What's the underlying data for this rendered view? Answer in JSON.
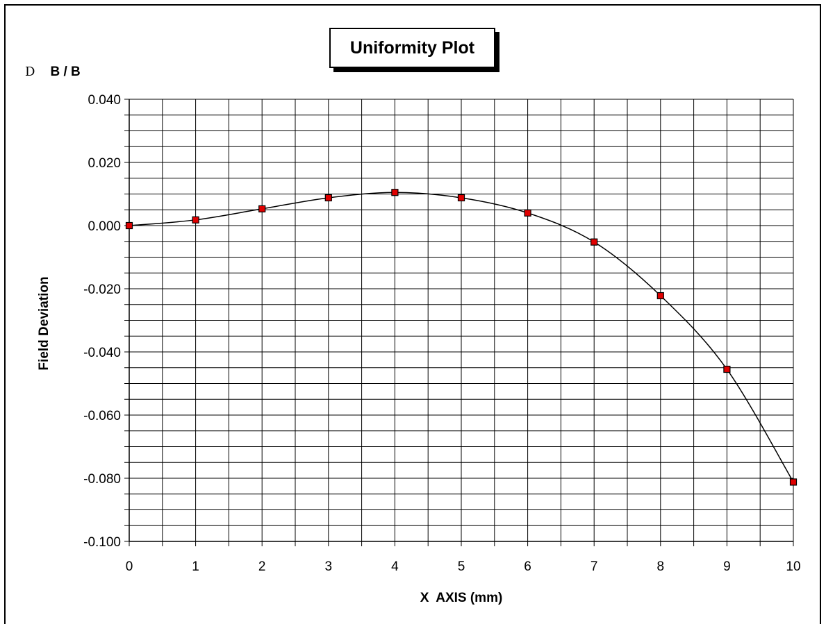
{
  "chart_data": {
    "type": "line",
    "title": "Uniformity Plot",
    "ylabel_top": {
      "symbol": "D",
      "text": "B / B"
    },
    "ylabel": "Field Deviation",
    "xlabel": "X  AXIS (mm)",
    "xlim": [
      0,
      10
    ],
    "ylim": [
      -0.1,
      0.04
    ],
    "x_ticks": [
      "0",
      "1",
      "2",
      "3",
      "4",
      "5",
      "6",
      "7",
      "8",
      "9",
      "10"
    ],
    "y_ticks": [
      "0.040",
      "0.020",
      "0.000",
      "-0.020",
      "-0.040",
      "-0.060",
      "-0.080",
      "-0.100"
    ],
    "y_tick_values": [
      0.04,
      0.02,
      0.0,
      -0.02,
      -0.04,
      -0.06,
      -0.08,
      -0.1
    ],
    "grid": true,
    "series": [
      {
        "x": [
          0,
          1,
          2,
          3,
          4,
          5,
          6,
          7,
          8,
          9,
          10
        ],
        "values": [
          0.0,
          0.0018,
          0.0053,
          0.0088,
          0.0105,
          0.0088,
          0.004,
          -0.0052,
          -0.0222,
          -0.0455,
          -0.0812
        ],
        "color": "#000000",
        "marker_color": "#e00000"
      }
    ]
  }
}
